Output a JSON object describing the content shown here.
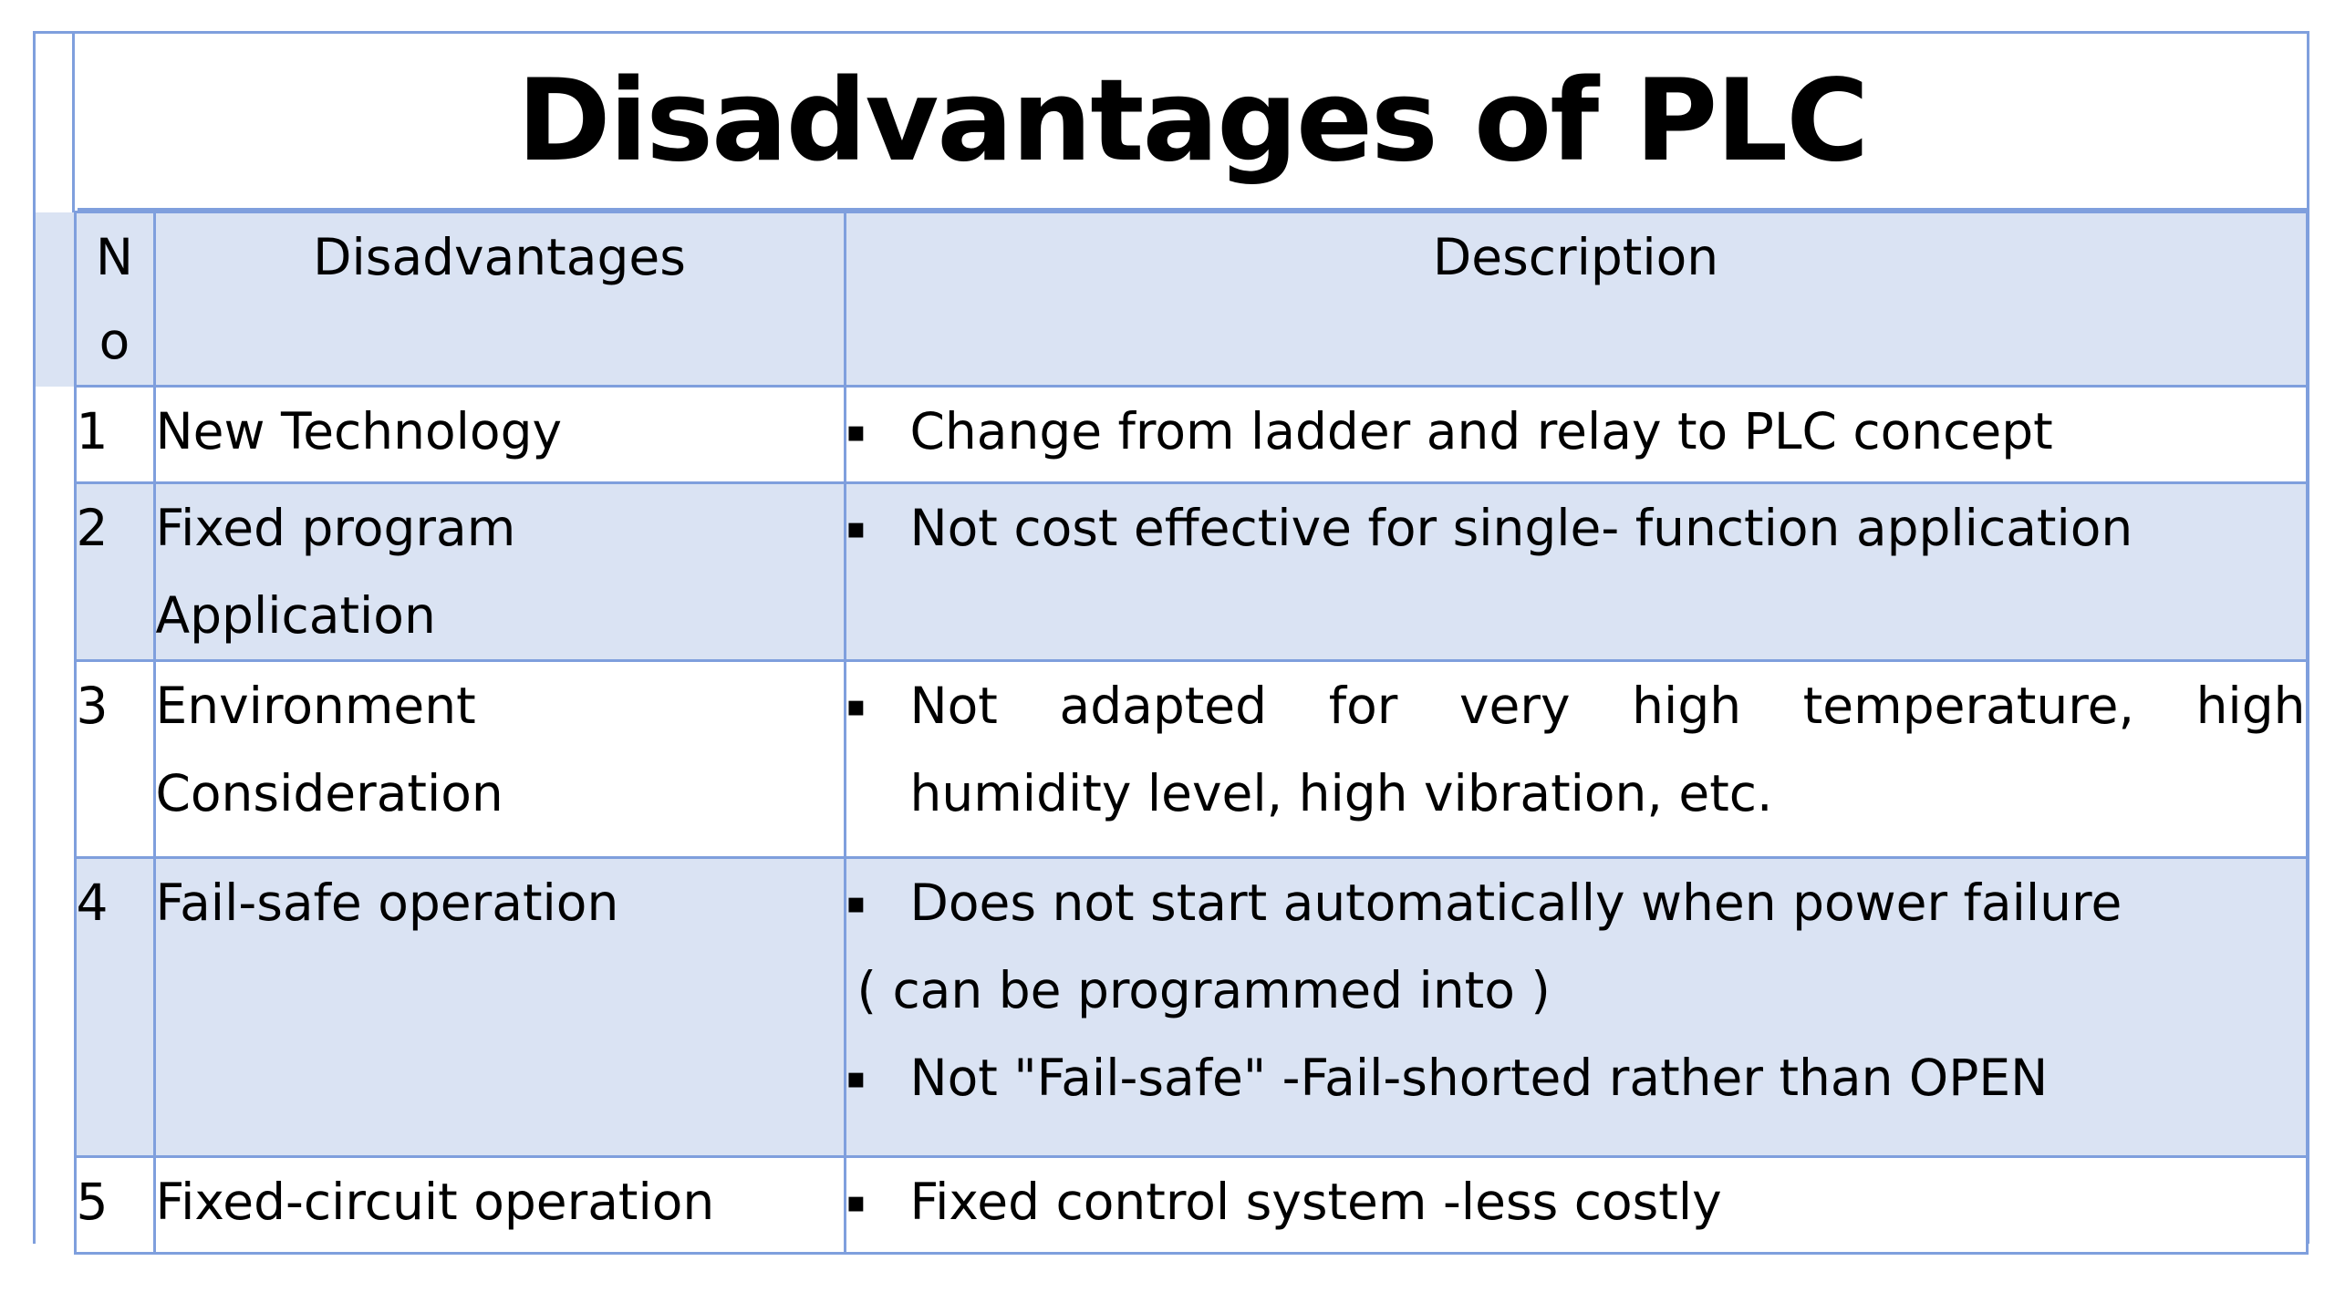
{
  "title": "Disadvantages of PLC",
  "headers": {
    "no_line1": "N",
    "no_line2": "o",
    "disadvantages": "Disadvantages",
    "description": "Description"
  },
  "bullet_glyph": "▪",
  "rows": [
    {
      "no": "1",
      "disadvantage": [
        "New Technology"
      ],
      "description": [
        {
          "bullet": true,
          "text": "Change from ladder and relay to PLC concept"
        }
      ]
    },
    {
      "no": "2",
      "disadvantage": [
        "Fixed program",
        "Application"
      ],
      "description": [
        {
          "bullet": true,
          "text": "Not cost effective for single- function application"
        }
      ]
    },
    {
      "no": "3",
      "disadvantage": [
        "Environment",
        "Consideration"
      ],
      "description": [
        {
          "bullet": true,
          "text": "Not adapted for very high temperature, high"
        },
        {
          "bullet": false,
          "text": "humidity level, high vibration, etc."
        }
      ]
    },
    {
      "no": "4",
      "disadvantage": [
        "Fail-safe operation"
      ],
      "description": [
        {
          "bullet": true,
          "text": "Does not start automatically when power failure"
        },
        {
          "bullet": false,
          "text": "( can be programmed into )"
        },
        {
          "bullet": true,
          "text": "Not \"Fail-safe\" -Fail-shorted rather than OPEN"
        }
      ]
    },
    {
      "no": "5",
      "disadvantage": [
        "Fixed-circuit operation"
      ],
      "description": [
        {
          "bullet": true,
          "text": "Fixed control system -less costly"
        }
      ]
    }
  ],
  "colors": {
    "border": "#7f9fdd",
    "shaded_row": "#dae3f3",
    "plain_row": "#ffffff"
  }
}
